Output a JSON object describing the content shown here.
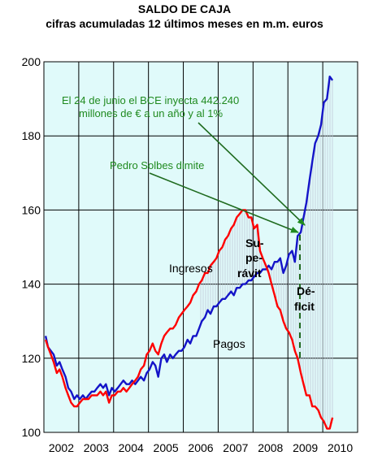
{
  "chart_data": {
    "type": "line",
    "title": "SALDO DE CAJA",
    "subtitle": "cifras acumuladas 12 últimos meses en m.m. euros",
    "xlabel": "",
    "ylabel": "",
    "xlim": [
      2001.5,
      2010.5
    ],
    "ylim": [
      100,
      200
    ],
    "y_ticks": [
      100,
      120,
      140,
      160,
      180,
      200
    ],
    "x_tick_labels": [
      "2002",
      "2003",
      "2004",
      "2005",
      "2006",
      "2007",
      "2008",
      "2009",
      "2010"
    ],
    "x_tick_values": [
      2002,
      2003,
      2004,
      2005,
      2006,
      2007,
      2008,
      2009,
      2010
    ],
    "grid": true,
    "background_color": "#e0fafa",
    "series": [
      {
        "name": "Ingresos",
        "color": "#1414c8",
        "x": [
          2001.55,
          2001.62,
          2001.7,
          2001.78,
          2001.87,
          2001.95,
          2002.03,
          2002.12,
          2002.2,
          2002.28,
          2002.37,
          2002.45,
          2002.53,
          2002.62,
          2002.7,
          2002.78,
          2002.87,
          2002.95,
          2003.03,
          2003.12,
          2003.2,
          2003.28,
          2003.37,
          2003.45,
          2003.53,
          2003.62,
          2003.7,
          2003.78,
          2003.87,
          2003.95,
          2004.03,
          2004.12,
          2004.2,
          2004.28,
          2004.37,
          2004.45,
          2004.53,
          2004.62,
          2004.7,
          2004.78,
          2004.87,
          2004.95,
          2005.03,
          2005.12,
          2005.2,
          2005.28,
          2005.37,
          2005.45,
          2005.53,
          2005.62,
          2005.7,
          2005.78,
          2005.87,
          2005.95,
          2006.03,
          2006.12,
          2006.2,
          2006.28,
          2006.37,
          2006.45,
          2006.53,
          2006.62,
          2006.7,
          2006.78,
          2006.87,
          2006.95,
          2007.03,
          2007.12,
          2007.2,
          2007.28,
          2007.37,
          2007.45,
          2007.53,
          2007.62,
          2007.7,
          2007.78,
          2007.87,
          2007.95,
          2008.03,
          2008.12,
          2008.2,
          2008.28,
          2008.37,
          2008.45,
          2008.53,
          2008.62,
          2008.7,
          2008.78,
          2008.87,
          2008.95,
          2009.03,
          2009.12,
          2009.2,
          2009.28,
          2009.37,
          2009.45,
          2009.53,
          2009.62,
          2009.7,
          2009.78
        ],
        "values": [
          126,
          123,
          122,
          121,
          118,
          119,
          117,
          115,
          112,
          111,
          109,
          110,
          109,
          110,
          109,
          110,
          111,
          111,
          112,
          113,
          112,
          113,
          110,
          112,
          111,
          112,
          113,
          114,
          113,
          113,
          114,
          113,
          114,
          115,
          114,
          116,
          117,
          119,
          118,
          115,
          120,
          121,
          119,
          121,
          120,
          121,
          122,
          122,
          123,
          125,
          124,
          126,
          126,
          128,
          130,
          131,
          133,
          132,
          134,
          134,
          135,
          136,
          136,
          137,
          138,
          137,
          139,
          139,
          140,
          140,
          141,
          141,
          142,
          143,
          143,
          144,
          144,
          145,
          144,
          146,
          146,
          147,
          143,
          145,
          148,
          149,
          146,
          153,
          154,
          158,
          162,
          168,
          173,
          178,
          180,
          183,
          189,
          190,
          196,
          195
        ]
      },
      {
        "name": "Pagos",
        "color": "#ff0000",
        "x": [
          2001.55,
          2001.62,
          2001.7,
          2001.78,
          2001.87,
          2001.95,
          2002.03,
          2002.12,
          2002.2,
          2002.28,
          2002.37,
          2002.45,
          2002.53,
          2002.62,
          2002.7,
          2002.78,
          2002.87,
          2002.95,
          2003.03,
          2003.12,
          2003.2,
          2003.28,
          2003.37,
          2003.45,
          2003.53,
          2003.62,
          2003.7,
          2003.78,
          2003.87,
          2003.95,
          2004.03,
          2004.12,
          2004.2,
          2004.28,
          2004.37,
          2004.45,
          2004.53,
          2004.62,
          2004.7,
          2004.78,
          2004.87,
          2004.95,
          2005.03,
          2005.12,
          2005.2,
          2005.28,
          2005.37,
          2005.45,
          2005.53,
          2005.62,
          2005.7,
          2005.78,
          2005.87,
          2005.95,
          2006.03,
          2006.12,
          2006.2,
          2006.28,
          2006.37,
          2006.45,
          2006.53,
          2006.62,
          2006.7,
          2006.78,
          2006.87,
          2006.95,
          2007.03,
          2007.12,
          2007.2,
          2007.28,
          2007.37,
          2007.45,
          2007.53,
          2007.62,
          2007.7,
          2007.78,
          2007.87,
          2007.95,
          2008.03,
          2008.12,
          2008.2,
          2008.28,
          2008.37,
          2008.45,
          2008.53,
          2008.62,
          2008.7,
          2008.78,
          2008.87,
          2008.95,
          2009.03,
          2009.12,
          2009.2,
          2009.28,
          2009.37,
          2009.45,
          2009.53,
          2009.62,
          2009.7,
          2009.78
        ],
        "values": [
          125,
          123,
          121,
          119,
          116,
          117,
          115,
          112,
          110,
          108,
          107,
          107,
          108,
          109,
          109,
          109,
          110,
          110,
          110,
          111,
          110,
          111,
          108,
          110,
          110,
          111,
          111,
          112,
          111,
          112,
          113,
          114,
          115,
          117,
          118,
          121,
          122,
          124,
          122,
          121,
          124,
          126,
          127,
          128,
          128,
          129,
          131,
          132,
          133,
          134,
          135,
          137,
          138,
          140,
          141,
          143,
          143,
          145,
          146,
          147,
          149,
          150,
          152,
          153,
          155,
          156,
          158,
          159,
          160,
          160,
          158,
          158,
          155,
          156,
          149,
          147,
          145,
          143,
          140,
          137,
          134,
          133,
          130,
          128,
          127,
          125,
          122,
          120,
          116,
          113,
          110,
          110,
          107,
          107,
          106,
          104,
          103,
          101,
          101,
          104
        ]
      }
    ]
  },
  "text": {
    "title": "SALDO DE CAJA",
    "subtitle": "cifras acumuladas 12 últimos meses en m.m. euros",
    "annotation_bce_line1": "El 24 de junio el BCE inyecta 442.240",
    "annotation_bce_line2": "millones de € a un año y al 1%",
    "annotation_solbes": "Pedro Solbes dimite",
    "label_ingresos": "Ingresos",
    "label_pagos": "Pagos",
    "label_superavit_1": "Su-",
    "label_superavit_2": "pe-",
    "label_superavit_3": "rávit",
    "label_deficit_1": "Dé-",
    "label_deficit_2": "ficit"
  },
  "colors": {
    "annotation": "#1f8a1f",
    "ingresos": "#1414c8",
    "pagos": "#ff0000",
    "marker_line": "#1f6b1f"
  }
}
